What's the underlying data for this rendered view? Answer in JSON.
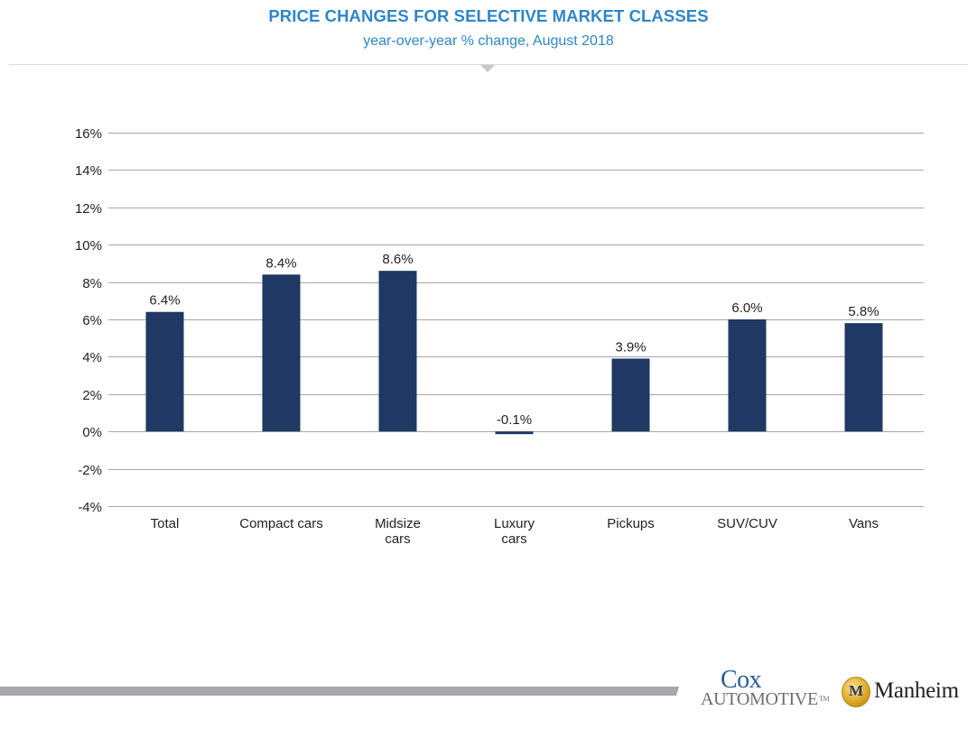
{
  "header": {
    "title": "PRICE CHANGES FOR SELECTIVE MARKET CLASSES",
    "subtitle": "year-over-year % change, August 2018"
  },
  "colors": {
    "title": "#2e86c8",
    "bar": "#1f3864",
    "grid": "#a6a6a6",
    "footer_bar": "#a5a7aa"
  },
  "chart_data": {
    "type": "bar",
    "title": "PRICE CHANGES FOR SELECTIVE MARKET CLASSES",
    "subtitle": "year-over-year % change, August 2018",
    "xlabel": "",
    "ylabel": "",
    "categories": [
      [
        "Total"
      ],
      [
        "Compact cars"
      ],
      [
        "Midsize",
        "cars"
      ],
      [
        "Luxury",
        "cars"
      ],
      [
        "Pickups"
      ],
      [
        "SUV/CUV"
      ],
      [
        "Vans"
      ]
    ],
    "values": [
      6.4,
      8.4,
      8.6,
      -0.1,
      3.9,
      6.0,
      5.8
    ],
    "data_labels": [
      "6.4%",
      "8.4%",
      "8.6%",
      "-0.1%",
      "3.9%",
      "6.0%",
      "5.8%"
    ],
    "ylim": [
      -4,
      16
    ],
    "yticks": [
      16,
      14,
      12,
      10,
      8,
      6,
      4,
      2,
      0,
      -2,
      -4
    ],
    "ytick_labels": [
      "16%",
      "14%",
      "12%",
      "10%",
      "8%",
      "6%",
      "4%",
      "2%",
      "0%",
      "-2%",
      "-4%"
    ],
    "grid": true,
    "legend": "none"
  },
  "footer": {
    "cox_line1": "Cox",
    "cox_line2": "Automotive",
    "cox_tm": "TM",
    "manheim_badge": "M",
    "manheim_name": "Manheim"
  }
}
